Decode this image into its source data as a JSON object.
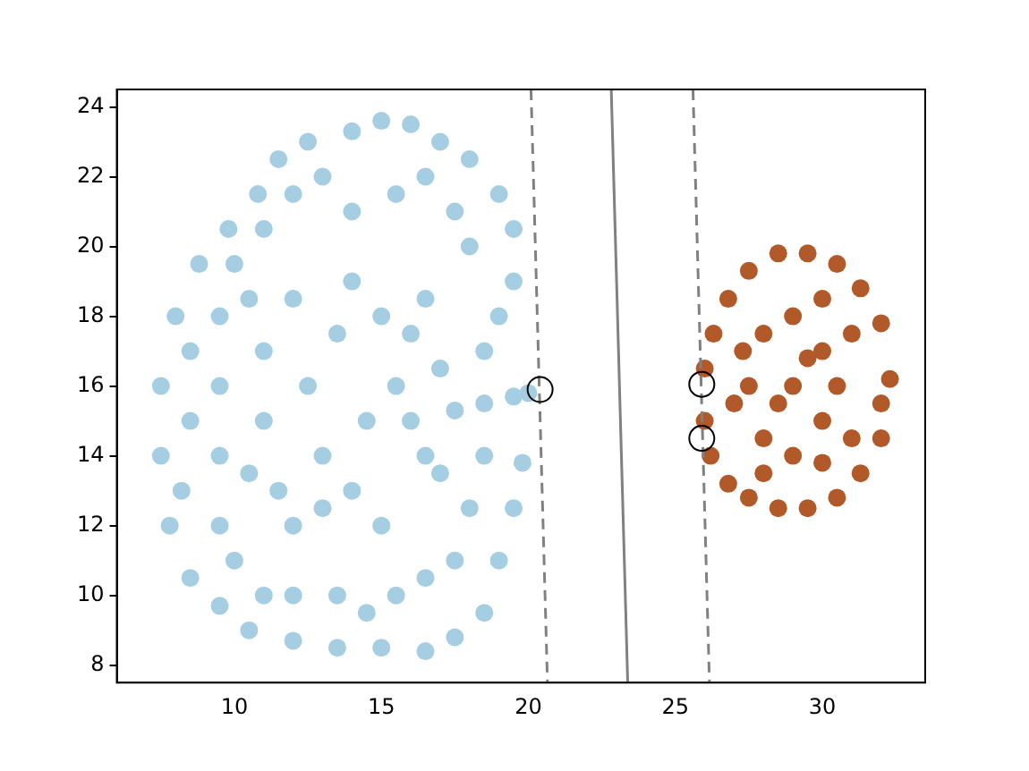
{
  "chart_data": {
    "type": "scatter",
    "xlim": [
      6,
      33.5
    ],
    "ylim": [
      7.5,
      24.5
    ],
    "xticks": [
      10,
      15,
      20,
      25,
      30
    ],
    "yticks": [
      8,
      10,
      12,
      14,
      16,
      18,
      20,
      22,
      24
    ],
    "grid": false,
    "legend": false,
    "series": [
      {
        "type": "scatter",
        "color": "#a6cee3",
        "marker": "circle",
        "x": [
          7.5,
          7.5,
          7.8,
          8,
          8.5,
          8.8,
          9.5,
          9.8,
          10.5,
          10.8,
          11.5,
          12,
          12.5,
          13.5,
          14,
          15,
          15,
          16,
          16.5,
          17,
          17.5,
          18,
          18.5,
          19,
          19.5,
          19,
          19.5,
          19.8,
          19.5,
          19,
          18.5,
          20,
          19.5,
          18.5,
          17.5,
          17,
          9.5,
          9.5,
          9.5,
          9.5,
          10,
          10,
          11,
          11,
          12,
          12,
          13,
          13.5,
          14,
          14.5,
          15.5,
          15.5,
          16.5,
          16.5,
          17.5,
          17.5,
          18,
          18,
          18.5,
          16.5,
          16,
          15.5,
          16,
          16.5,
          17,
          11,
          11,
          11.5,
          12,
          12.5,
          13,
          13,
          13.5,
          14,
          14.5,
          14,
          15,
          15,
          12,
          10.5,
          10.5,
          8.5,
          8.5,
          8.2
        ],
        "values": [
          14,
          16,
          12,
          18,
          10.5,
          19.5,
          9.7,
          20.5,
          9,
          21.5,
          22.5,
          8.7,
          23,
          8.5,
          23.3,
          23.6,
          8.5,
          23.5,
          8.4,
          23,
          8.8,
          22.5,
          9.5,
          21.5,
          20.5,
          11,
          12.5,
          13.8,
          19,
          18,
          17,
          15.8,
          15.7,
          15.5,
          15.3,
          16.5,
          12,
          14,
          16,
          18,
          19.5,
          11,
          10,
          20.5,
          21.5,
          10,
          22,
          10,
          21,
          9.5,
          21.5,
          10,
          22,
          10.5,
          21,
          11,
          20,
          12.5,
          14,
          18.5,
          17.5,
          16,
          15,
          14,
          13.5,
          15,
          17,
          13,
          18.5,
          16,
          14,
          12.5,
          17.5,
          19,
          15,
          13,
          12,
          18,
          12,
          13.5,
          18.5,
          15,
          17,
          13
        ]
      },
      {
        "type": "scatter",
        "color": "#b15928",
        "marker": "circle",
        "x": [
          26,
          26,
          26.3,
          26.2,
          26.8,
          26.8,
          27.5,
          27.5,
          28.5,
          28.5,
          29.5,
          29.5,
          30.5,
          30.5,
          31.3,
          31.3,
          32,
          32,
          32.3,
          32,
          27.5,
          28,
          28,
          29,
          29,
          29,
          30,
          30,
          30.5,
          31,
          31,
          27,
          27.3,
          28.5,
          29.5,
          30,
          28,
          30
        ],
        "values": [
          15,
          16.5,
          17.5,
          14,
          18.5,
          13.2,
          19.3,
          12.8,
          19.8,
          12.5,
          19.8,
          12.5,
          19.5,
          12.8,
          18.8,
          13.5,
          17.8,
          14.5,
          16.2,
          15.5,
          16,
          17.5,
          14.5,
          18,
          16,
          14,
          17,
          15,
          16,
          17.5,
          14.5,
          15.5,
          17,
          15.5,
          16.8,
          13.8,
          13.5,
          18.5
        ]
      },
      {
        "type": "line",
        "color": "#808080",
        "line_style": "solid",
        "marker": "none",
        "x": [
          22.82,
          23.38
        ],
        "values": [
          24.5,
          7.5
        ]
      },
      {
        "type": "line",
        "color": "#808080",
        "line_style": "dashed",
        "marker": "none",
        "x": [
          20.09,
          20.65
        ],
        "values": [
          24.5,
          7.5
        ]
      },
      {
        "type": "line",
        "color": "#808080",
        "line_style": "dashed",
        "marker": "none",
        "x": [
          25.6,
          26.16
        ],
        "values": [
          24.5,
          7.5
        ]
      },
      {
        "type": "scatter",
        "color": "#000000",
        "marker": "circle",
        "x": [
          20.4,
          25.9,
          25.9
        ],
        "values": [
          15.9,
          16.05,
          14.5
        ]
      }
    ]
  }
}
